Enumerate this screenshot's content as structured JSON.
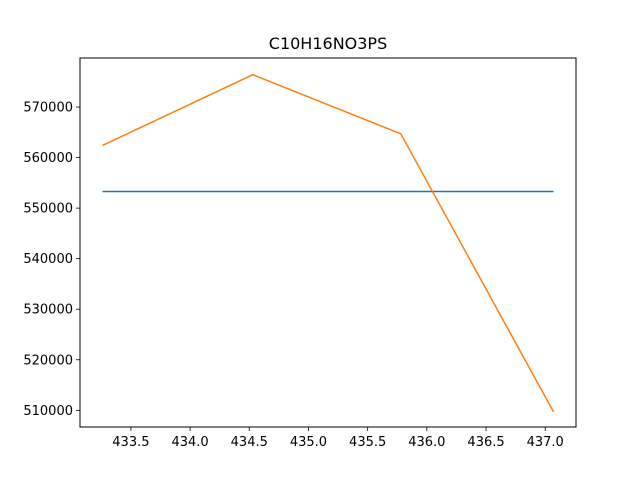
{
  "chart_data": {
    "type": "line",
    "title": "C10H16NO3PS",
    "xlabel": "",
    "ylabel": "",
    "xlim": [
      433.07,
      437.26
    ],
    "ylim": [
      506700,
      579700
    ],
    "xticks": [
      433.5,
      434.0,
      434.5,
      435.0,
      435.5,
      436.0,
      436.5,
      437.0
    ],
    "xtick_labels": [
      "433.5",
      "434.0",
      "434.5",
      "435.0",
      "435.5",
      "436.0",
      "436.5",
      "437.0"
    ],
    "yticks": [
      510000,
      520000,
      530000,
      540000,
      550000,
      560000,
      570000
    ],
    "ytick_labels": [
      "510000",
      "520000",
      "530000",
      "540000",
      "550000",
      "560000",
      "570000"
    ],
    "grid": false,
    "series": [
      {
        "color": "#1f77b4",
        "x": [
          433.26,
          437.07
        ],
        "y": [
          553300,
          553300
        ]
      },
      {
        "color": "#ff7f0e",
        "x": [
          433.26,
          434.53,
          435.78,
          437.07
        ],
        "y": [
          562400,
          576400,
          564700,
          509700
        ]
      }
    ]
  }
}
